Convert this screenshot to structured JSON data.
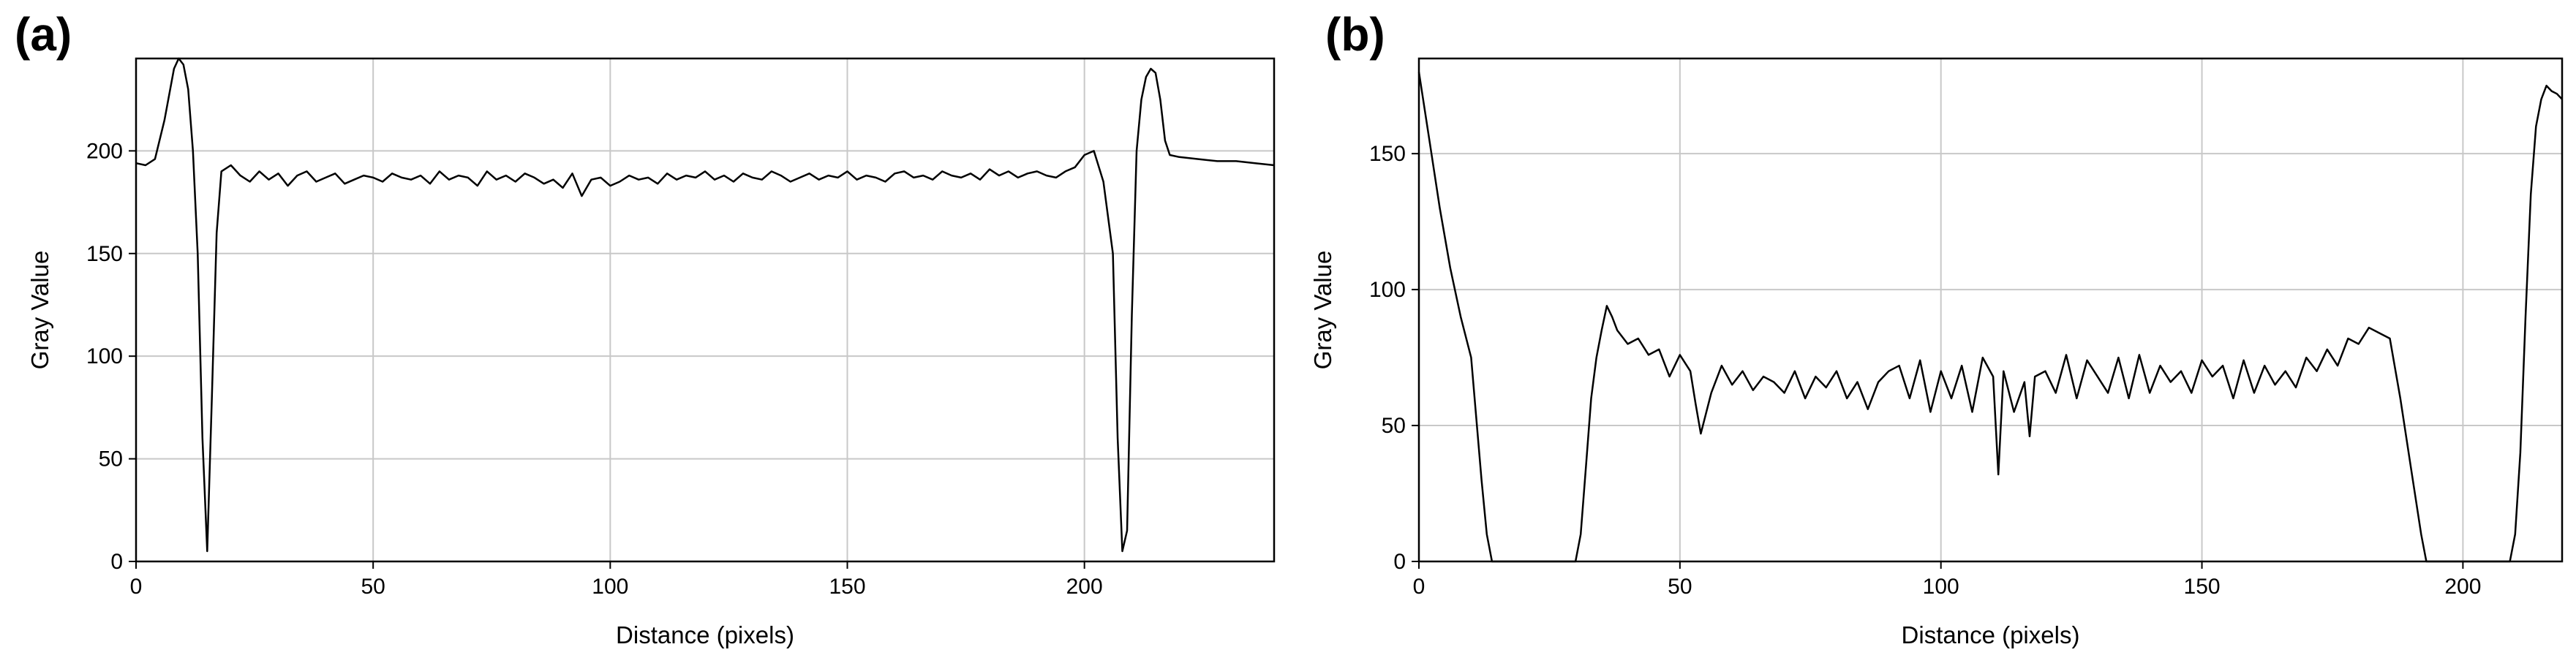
{
  "chart_data": [
    {
      "panel": "(a)",
      "type": "line",
      "xlabel": "Distance (pixels)",
      "ylabel": "Gray Value",
      "xlim": [
        0,
        240
      ],
      "ylim": [
        0,
        245
      ],
      "xticks": [
        0,
        50,
        100,
        150,
        200
      ],
      "yticks": [
        0,
        50,
        100,
        150,
        200
      ],
      "grid": true,
      "series": [
        {
          "color": "#000000",
          "x": [
            0,
            2,
            4,
            6,
            8,
            9,
            10,
            11,
            12,
            13,
            14,
            15,
            16,
            17,
            18,
            20,
            22,
            24,
            26,
            28,
            30,
            32,
            34,
            36,
            38,
            40,
            42,
            44,
            46,
            48,
            50,
            52,
            54,
            56,
            58,
            60,
            62,
            64,
            66,
            68,
            70,
            72,
            74,
            76,
            78,
            80,
            82,
            84,
            86,
            88,
            90,
            92,
            94,
            96,
            98,
            100,
            102,
            104,
            106,
            108,
            110,
            112,
            114,
            116,
            118,
            120,
            122,
            124,
            126,
            128,
            130,
            132,
            134,
            136,
            138,
            140,
            142,
            144,
            146,
            148,
            150,
            152,
            154,
            156,
            158,
            160,
            162,
            164,
            166,
            168,
            170,
            172,
            174,
            176,
            178,
            180,
            182,
            184,
            186,
            188,
            190,
            192,
            194,
            196,
            198,
            200,
            202,
            204,
            206,
            207,
            208,
            209,
            210,
            211,
            212,
            213,
            214,
            215,
            216,
            217,
            218,
            220,
            224,
            228,
            232,
            236,
            240
          ],
          "values": [
            194,
            193,
            196,
            215,
            240,
            245,
            242,
            230,
            200,
            150,
            60,
            5,
            80,
            160,
            190,
            193,
            188,
            185,
            190,
            186,
            189,
            183,
            188,
            190,
            185,
            187,
            189,
            184,
            186,
            188,
            187,
            185,
            189,
            187,
            186,
            188,
            184,
            190,
            186,
            188,
            187,
            183,
            190,
            186,
            188,
            185,
            189,
            187,
            184,
            186,
            182,
            189,
            178,
            186,
            187,
            183,
            185,
            188,
            186,
            187,
            184,
            189,
            186,
            188,
            187,
            190,
            186,
            188,
            185,
            189,
            187,
            186,
            190,
            188,
            185,
            187,
            189,
            186,
            188,
            187,
            190,
            186,
            188,
            187,
            185,
            189,
            190,
            187,
            188,
            186,
            190,
            188,
            187,
            189,
            186,
            191,
            188,
            190,
            187,
            189,
            190,
            188,
            187,
            190,
            192,
            198,
            200,
            185,
            150,
            60,
            5,
            15,
            120,
            200,
            225,
            236,
            240,
            238,
            225,
            205,
            198,
            197,
            196,
            195,
            195,
            194,
            193
          ]
        }
      ]
    },
    {
      "panel": "(b)",
      "type": "line",
      "xlabel": "Distance (pixels)",
      "ylabel": "Gray Value",
      "xlim": [
        0,
        219
      ],
      "ylim": [
        0,
        185
      ],
      "xticks": [
        0,
        50,
        100,
        150,
        200
      ],
      "yticks": [
        0,
        50,
        100,
        150
      ],
      "grid": true,
      "series": [
        {
          "color": "#000000",
          "x": [
            0,
            2,
            4,
            6,
            8,
            10,
            12,
            13,
            14,
            30,
            31,
            32,
            33,
            34,
            35,
            36,
            37,
            38,
            40,
            42,
            44,
            46,
            48,
            50,
            52,
            53,
            54,
            56,
            58,
            60,
            62,
            64,
            66,
            68,
            70,
            72,
            74,
            76,
            78,
            80,
            82,
            84,
            86,
            88,
            90,
            92,
            94,
            96,
            98,
            100,
            102,
            104,
            106,
            108,
            110,
            111,
            112,
            114,
            116,
            117,
            118,
            120,
            122,
            124,
            126,
            128,
            130,
            132,
            134,
            136,
            138,
            140,
            142,
            144,
            146,
            148,
            150,
            152,
            154,
            156,
            158,
            160,
            162,
            164,
            166,
            168,
            170,
            172,
            174,
            176,
            178,
            180,
            182,
            184,
            186,
            188,
            190,
            192,
            193,
            209,
            210,
            211,
            212,
            213,
            214,
            215,
            216,
            217,
            218,
            219
          ],
          "values": [
            180,
            155,
            130,
            108,
            90,
            75,
            30,
            10,
            0,
            0,
            10,
            35,
            60,
            75,
            85,
            94,
            90,
            85,
            80,
            82,
            76,
            78,
            68,
            76,
            70,
            58,
            47,
            62,
            72,
            65,
            70,
            63,
            68,
            66,
            62,
            70,
            60,
            68,
            64,
            70,
            60,
            66,
            56,
            66,
            70,
            72,
            60,
            74,
            55,
            70,
            60,
            72,
            55,
            75,
            68,
            32,
            70,
            55,
            66,
            46,
            68,
            70,
            62,
            76,
            60,
            74,
            68,
            62,
            75,
            60,
            76,
            62,
            72,
            66,
            70,
            62,
            74,
            68,
            72,
            60,
            74,
            62,
            72,
            65,
            70,
            64,
            75,
            70,
            78,
            72,
            82,
            80,
            86,
            84,
            82,
            60,
            35,
            10,
            0,
            0,
            10,
            40,
            90,
            135,
            160,
            170,
            175,
            173,
            172,
            170
          ]
        }
      ]
    }
  ]
}
